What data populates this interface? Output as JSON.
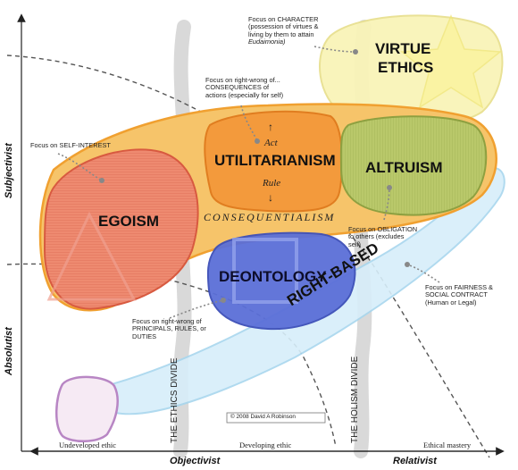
{
  "regions": {
    "virtue": "VIRTUE",
    "ethics": "ETHICS",
    "utilitarianism": "UTILITARIANISM",
    "altruism": "ALTRUISM",
    "egoism": "EGOISM",
    "deontology": "DEONTOLOGY",
    "consequentialism": "CONSEQUENTIALISM",
    "right_based": "RIGHT-BASED",
    "act": "Act",
    "rule": "Rule",
    "arrow_up": "↑",
    "arrow_down": "↓"
  },
  "notes": {
    "character_1": "Focus on CHARACTER",
    "character_2": "(possession of virtues &",
    "character_3": "living by them to attain",
    "character_4": "Eudaimonia)",
    "consequences_1": "Focus on right-wrong of...",
    "consequences_2": "CONSEQUENCES of",
    "consequences_3": "actions (especially for self)",
    "self_interest": "Focus on SELF-INTEREST",
    "obligation_1": "Focus on OBLIGATION",
    "obligation_2": "to others (excludes",
    "obligation_3": "self)",
    "fairness_1": "Focus on FAIRNESS &",
    "fairness_2": "SOCIAL CONTRACT",
    "fairness_3": "(Human or Legal)",
    "principals_1": "Focus on right-wrong of",
    "principals_2": "PRINCIPALS, RULES,  or",
    "principals_3": "DUTIES"
  },
  "dividers": {
    "ethics_divide": "THE ETHICS DIVIDE",
    "holism_divide": "THE HOLISM DIVIDE"
  },
  "axes": {
    "subjectivist": "Subjectivist",
    "absolutist": "Absolutist",
    "objectivist": "Objectivist",
    "relativist": "Relativist",
    "undeveloped": "Undeveloped ethic",
    "developing": "Developing ethic",
    "mastery": "Ethical mastery"
  },
  "copyright": "© 2008 David A Robinson",
  "colors": {
    "consequentialism_fill": "#f6c46a",
    "consequentialism_stroke": "#f0a030",
    "egoism_fill": "#ee8a70",
    "utilitarianism_fill": "#f39a3c",
    "altruism_fill": "#b9c86a",
    "deontology_fill": "#5b6fd8",
    "right_based_fill": "#d7eefa",
    "virtue_fill": "#f9f4b8",
    "divide_gray": "#d5d5d5"
  }
}
